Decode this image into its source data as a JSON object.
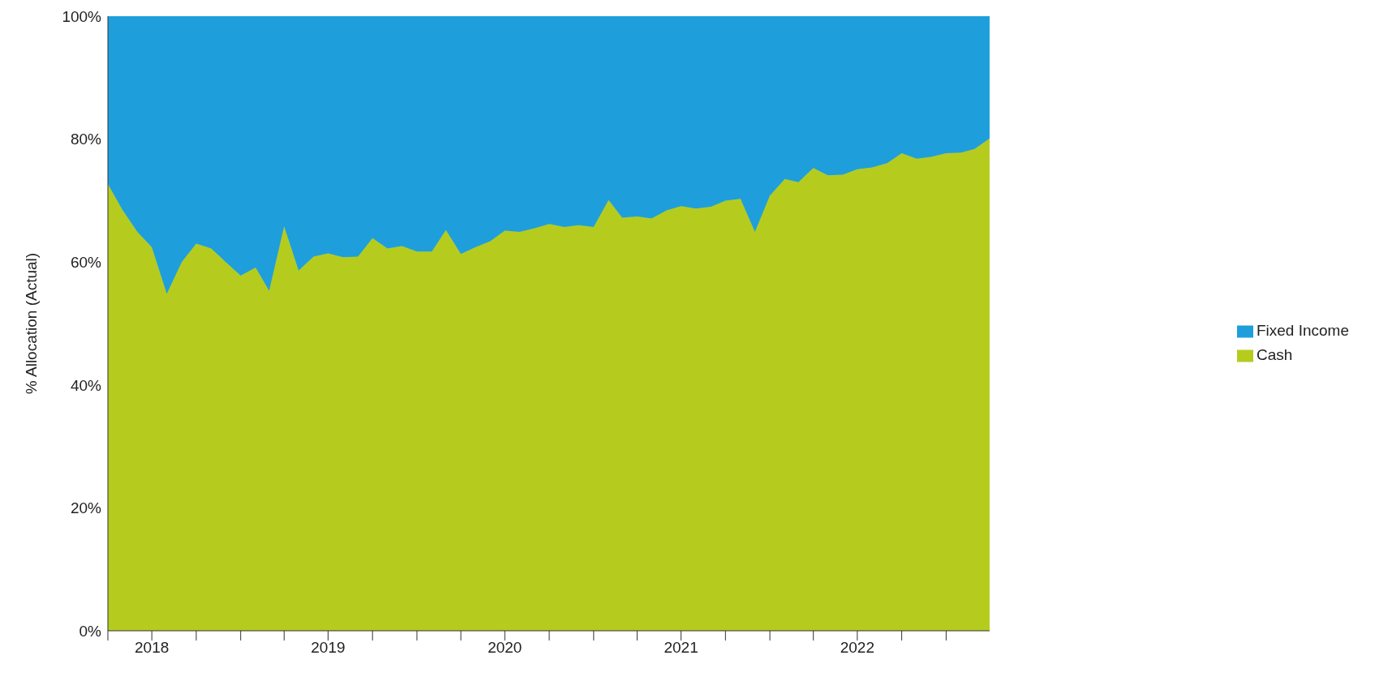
{
  "chart_data": {
    "type": "area",
    "stacked": true,
    "ylabel": "% Allocation (Actual)",
    "legend": "right",
    "grid": false,
    "x": [
      "2018-04",
      "2018-05",
      "2018-06",
      "2018-07",
      "2018-08",
      "2018-09",
      "2018-10",
      "2018-11",
      "2018-12",
      "2019-01",
      "2019-02",
      "2019-03",
      "2019-04",
      "2019-05",
      "2019-06",
      "2019-07",
      "2019-08",
      "2019-09",
      "2019-10",
      "2019-11",
      "2019-12",
      "2020-01",
      "2020-02",
      "2020-03",
      "2020-04",
      "2020-05",
      "2020-06",
      "2020-07",
      "2020-08",
      "2020-09",
      "2020-10",
      "2020-11",
      "2020-12",
      "2021-01",
      "2021-02",
      "2021-03",
      "2021-04",
      "2021-05",
      "2021-06",
      "2021-07",
      "2021-08",
      "2021-09",
      "2021-10",
      "2021-11",
      "2021-12",
      "2022-01",
      "2022-02",
      "2022-03",
      "2022-04",
      "2022-05",
      "2022-06",
      "2022-07",
      "2022-08",
      "2022-09",
      "2022-10",
      "2022-11",
      "2022-12",
      "2023-01",
      "2023-02",
      "2023-03",
      "2023-04"
    ],
    "series": [
      {
        "name": "Cash",
        "color": "#b5cc1e",
        "values": [
          72.7,
          68.5,
          64.9,
          62.4,
          54.8,
          60.0,
          63.0,
          62.2,
          60.0,
          57.8,
          59.1,
          55.3,
          65.8,
          58.6,
          60.9,
          61.4,
          60.8,
          60.9,
          63.9,
          62.2,
          62.6,
          61.7,
          61.7,
          65.2,
          61.3,
          62.4,
          63.4,
          65.1,
          64.9,
          65.5,
          66.2,
          65.7,
          66.0,
          65.7,
          70.1,
          67.2,
          67.4,
          67.1,
          68.4,
          69.1,
          68.7,
          69.0,
          70.0,
          70.3,
          64.9,
          70.8,
          73.5,
          73.0,
          75.3,
          74.1,
          74.2,
          75.1,
          75.4,
          76.1,
          77.7,
          76.8,
          77.1,
          77.7,
          77.8,
          78.4,
          80.1
        ]
      },
      {
        "name": "Fixed Income",
        "color": "#1e9fdc",
        "values": [
          27.3,
          31.5,
          35.1,
          37.6,
          45.2,
          40.0,
          37.0,
          37.8,
          40.0,
          42.2,
          40.9,
          44.7,
          34.2,
          41.4,
          39.1,
          38.6,
          39.2,
          39.1,
          36.1,
          37.8,
          37.4,
          38.3,
          38.3,
          34.8,
          38.7,
          37.6,
          36.6,
          34.9,
          35.1,
          34.5,
          33.8,
          34.3,
          34.0,
          34.3,
          29.9,
          32.8,
          32.6,
          32.9,
          31.6,
          30.9,
          31.3,
          31.0,
          30.0,
          29.7,
          35.1,
          29.2,
          26.5,
          27.0,
          24.7,
          25.9,
          25.8,
          24.9,
          24.6,
          23.9,
          22.3,
          23.2,
          22.9,
          22.3,
          22.2,
          21.6,
          19.9
        ]
      }
    ],
    "ylim": [
      0,
      100
    ],
    "yticks": [
      {
        "value": 0,
        "label": "0%"
      },
      {
        "value": 20,
        "label": "20%"
      },
      {
        "value": 40,
        "label": "40%"
      },
      {
        "value": 60,
        "label": "60%"
      },
      {
        "value": 80,
        "label": "80%"
      },
      {
        "value": 100,
        "label": "100%"
      }
    ],
    "xlim": [
      "2018-04",
      "2023-04"
    ],
    "xticks": [
      {
        "value": "2018-04",
        "label": null
      },
      {
        "value": "2018-07",
        "label": "2018"
      },
      {
        "value": "2018-10",
        "label": null
      },
      {
        "value": "2019-01",
        "label": null
      },
      {
        "value": "2019-04",
        "label": null
      },
      {
        "value": "2019-07",
        "label": "2019"
      },
      {
        "value": "2019-10",
        "label": null
      },
      {
        "value": "2020-01",
        "label": null
      },
      {
        "value": "2020-04",
        "label": null
      },
      {
        "value": "2020-07",
        "label": "2020"
      },
      {
        "value": "2020-10",
        "label": null
      },
      {
        "value": "2021-01",
        "label": null
      },
      {
        "value": "2021-04",
        "label": null
      },
      {
        "value": "2021-07",
        "label": "2021"
      },
      {
        "value": "2021-10",
        "label": null
      },
      {
        "value": "2022-01",
        "label": null
      },
      {
        "value": "2022-04",
        "label": null
      },
      {
        "value": "2022-07",
        "label": "2022"
      },
      {
        "value": "2022-10",
        "label": null
      },
      {
        "value": "2023-01",
        "label": null
      }
    ]
  }
}
